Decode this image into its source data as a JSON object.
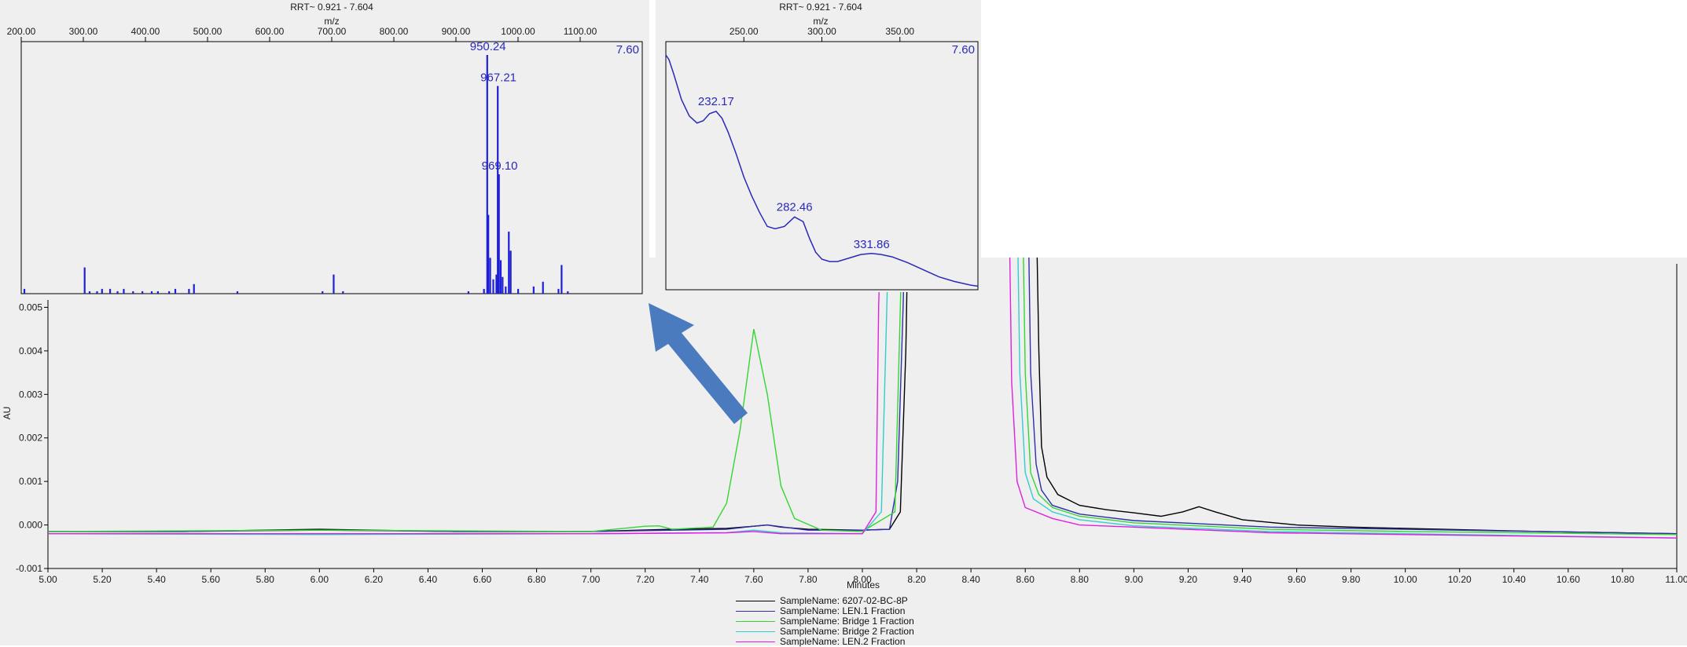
{
  "colors": {
    "panel_bg": "#efefef",
    "peak_text": "#2a2ab8",
    "arrow": "#4a7bbf"
  },
  "chart_data": [
    {
      "id": "chromatogram",
      "type": "line",
      "xlabel": "Minutes",
      "ylabel": "AU",
      "xlim": [
        5.0,
        11.0
      ],
      "ylim": [
        -0.001,
        0.006
      ],
      "x_ticks": [
        "5.00",
        "5.20",
        "5.40",
        "5.60",
        "5.80",
        "6.00",
        "6.20",
        "6.40",
        "6.60",
        "6.80",
        "7.00",
        "7.20",
        "7.40",
        "7.60",
        "7.80",
        "8.00",
        "8.20",
        "8.40",
        "8.60",
        "8.80",
        "9.00",
        "9.20",
        "9.40",
        "9.60",
        "9.80",
        "10.00",
        "10.20",
        "10.40",
        "10.60",
        "10.80",
        "11.00"
      ],
      "y_ticks": [
        "0.005",
        "0.004",
        "0.003",
        "0.002",
        "0.001",
        "0.000",
        "-0.001"
      ],
      "legend": "bottom-center",
      "series": [
        {
          "name": "SampleName: 6207-02-BC-8P",
          "color": "#000000",
          "x": [
            5.0,
            5.5,
            6.0,
            6.5,
            7.0,
            7.3,
            7.5,
            7.6,
            7.65,
            7.7,
            7.8,
            8.0,
            8.1,
            8.14,
            8.16,
            8.17,
            8.64,
            8.65,
            8.66,
            8.68,
            8.72,
            8.8,
            8.9,
            9.0,
            9.1,
            9.18,
            9.24,
            9.3,
            9.4,
            9.6,
            9.8,
            10.0,
            10.5,
            11.0
          ],
          "y": [
            -0.00015,
            -0.00015,
            -0.0001,
            -0.00015,
            -0.00015,
            -0.0001,
            -8e-05,
            -3e-05,
            0.0,
            -5e-05,
            -0.0001,
            -0.00012,
            -0.0001,
            0.0003,
            0.004,
            0.0075,
            0.0075,
            0.004,
            0.0018,
            0.0011,
            0.0007,
            0.00045,
            0.00035,
            0.00028,
            0.0002,
            0.0003,
            0.00042,
            0.0003,
            0.00012,
            0.0,
            -5e-05,
            -8e-05,
            -0.00015,
            -0.0002
          ]
        },
        {
          "name": "SampleName: LEN.1 Fraction",
          "color": "#2e2ea8",
          "x": [
            5.0,
            5.5,
            6.0,
            6.5,
            7.0,
            7.5,
            7.6,
            7.65,
            7.7,
            7.8,
            8.0,
            8.1,
            8.13,
            8.15,
            8.16,
            8.61,
            8.62,
            8.64,
            8.66,
            8.7,
            8.8,
            9.0,
            9.5,
            10.0,
            10.5,
            11.0
          ],
          "y": [
            -0.00015,
            -0.00015,
            -0.00012,
            -0.00015,
            -0.00015,
            -0.0001,
            -3e-05,
            0.0,
            -4e-05,
            -0.00012,
            -0.00012,
            -0.0001,
            0.001,
            0.005,
            0.0075,
            0.0075,
            0.0035,
            0.0014,
            0.0008,
            0.00045,
            0.00025,
            0.0001,
            -5e-05,
            -0.0001,
            -0.00015,
            -0.0002
          ]
        },
        {
          "name": "SampleName: Bridge 1 Fraction",
          "color": "#33d633",
          "x": [
            5.0,
            6.0,
            7.0,
            7.2,
            7.25,
            7.3,
            7.45,
            7.5,
            7.55,
            7.6,
            7.65,
            7.7,
            7.75,
            7.85,
            8.0,
            8.12,
            8.14,
            8.15,
            8.59,
            8.6,
            8.62,
            8.65,
            8.7,
            8.8,
            9.0,
            9.5,
            10.0,
            11.0
          ],
          "y": [
            -0.00015,
            -0.00012,
            -0.00015,
            -3e-05,
            -2e-05,
            -0.0001,
            -5e-05,
            0.0005,
            0.0022,
            0.0045,
            0.003,
            0.0009,
            0.00015,
            -0.00012,
            -0.00015,
            0.0003,
            0.005,
            0.0075,
            0.0075,
            0.0035,
            0.0012,
            0.0007,
            0.0004,
            0.0002,
            5e-05,
            -0.0001,
            -0.00015,
            -0.00022
          ]
        },
        {
          "name": "SampleName: Bridge 2 Fraction",
          "color": "#33cccc",
          "x": [
            5.0,
            6.0,
            7.0,
            7.5,
            7.6,
            7.7,
            8.0,
            8.07,
            8.09,
            8.1,
            8.57,
            8.58,
            8.6,
            8.63,
            8.7,
            8.8,
            9.0,
            9.5,
            10.0,
            11.0
          ],
          "y": [
            -0.0002,
            -0.00022,
            -0.0002,
            -0.00018,
            -0.00012,
            -0.00018,
            -0.0002,
            0.0003,
            0.005,
            0.0075,
            0.0075,
            0.0035,
            0.0012,
            0.0006,
            0.0003,
            0.00012,
            -2e-05,
            -0.00015,
            -0.0002,
            -0.0003
          ]
        },
        {
          "name": "SampleName: LEN.2 Fraction",
          "color": "#e020e0",
          "x": [
            5.0,
            6.0,
            7.0,
            7.5,
            7.6,
            7.7,
            8.0,
            8.05,
            8.06,
            8.07,
            8.54,
            8.55,
            8.57,
            8.6,
            8.7,
            8.8,
            9.0,
            9.5,
            10.0,
            11.0
          ],
          "y": [
            -0.0002,
            -0.0002,
            -0.0002,
            -0.00018,
            -0.00015,
            -0.0002,
            -0.0002,
            0.0003,
            0.005,
            0.0075,
            0.0075,
            0.0033,
            0.001,
            0.0004,
            0.00015,
            0.0,
            -5e-05,
            -0.00018,
            -0.00022,
            -0.0003
          ]
        }
      ]
    },
    {
      "id": "mass-spectrum",
      "type": "bar",
      "title": "RRT~ 0.921 - 7.604",
      "xlabel": "m/z",
      "xlim": [
        200,
        1200
      ],
      "corner_label": "7.60",
      "x_ticks": [
        "200.00",
        "300.00",
        "400.00",
        "500.00",
        "600.00",
        "700.00",
        "800.00",
        "900.00",
        "1000.00",
        "1100.00"
      ],
      "peak_labels": [
        {
          "text": "950.24",
          "x": 950.24,
          "y": 100
        },
        {
          "text": "967.21",
          "x": 967.21,
          "y": 87
        },
        {
          "text": "969.10",
          "x": 969.1,
          "y": 50
        }
      ],
      "x": [
        205,
        302,
        310,
        322,
        330,
        343,
        355,
        365,
        380,
        395,
        410,
        420,
        438,
        448,
        470,
        478,
        548,
        685,
        703,
        718,
        920,
        945,
        950.24,
        952,
        955,
        960,
        965,
        967.21,
        969.1,
        972,
        975,
        980,
        985,
        988,
        1000,
        1025,
        1040,
        1065,
        1070,
        1080
      ],
      "y": [
        2,
        11,
        1,
        1,
        2,
        2,
        1,
        2,
        1,
        1,
        1,
        1,
        1,
        2,
        2,
        4,
        1,
        1,
        8,
        1,
        1,
        2,
        100,
        33,
        15,
        6,
        8,
        87,
        50,
        14,
        7,
        3,
        26,
        18,
        2,
        3,
        5,
        2,
        12,
        1
      ]
    },
    {
      "id": "uv-spectrum",
      "type": "line",
      "title": "RRT~ 0.921 - 7.604",
      "xlabel": "m/z",
      "xlim": [
        200,
        400
      ],
      "corner_label": "7.60",
      "x_ticks": [
        "250.00",
        "300.00",
        "350.00"
      ],
      "peak_labels": [
        {
          "text": "232.17",
          "x": 232.17,
          "y": 76
        },
        {
          "text": "282.46",
          "x": 282.46,
          "y": 31
        },
        {
          "text": "331.86",
          "x": 331.86,
          "y": 15
        }
      ],
      "x": [
        200,
        202,
        205,
        210,
        215,
        220,
        224,
        228,
        232.17,
        236,
        240,
        245,
        250,
        255,
        260,
        265,
        270,
        276,
        282.46,
        288,
        292,
        296,
        300,
        305,
        310,
        315,
        320,
        325,
        331.86,
        338,
        345,
        355,
        365,
        375,
        385,
        395,
        400
      ],
      "y": [
        100,
        98,
        92,
        81,
        74,
        71,
        72,
        75,
        76,
        73,
        67,
        58,
        48,
        40,
        33,
        27,
        26,
        27,
        31,
        29,
        22,
        16,
        13,
        12,
        12,
        13,
        14,
        15,
        15.5,
        15,
        14,
        11.5,
        8.5,
        5.5,
        3.5,
        2,
        1.5
      ]
    }
  ],
  "legend": [
    {
      "label": "SampleName: 6207-02-BC-8P",
      "color": "#000000"
    },
    {
      "label": "SampleName: LEN.1 Fraction",
      "color": "#2e2ea8"
    },
    {
      "label": "SampleName: Bridge 1 Fraction",
      "color": "#33d633"
    },
    {
      "label": "SampleName: Bridge 2 Fraction",
      "color": "#33cccc"
    },
    {
      "label": "SampleName: LEN.2 Fraction",
      "color": "#e020e0"
    }
  ]
}
